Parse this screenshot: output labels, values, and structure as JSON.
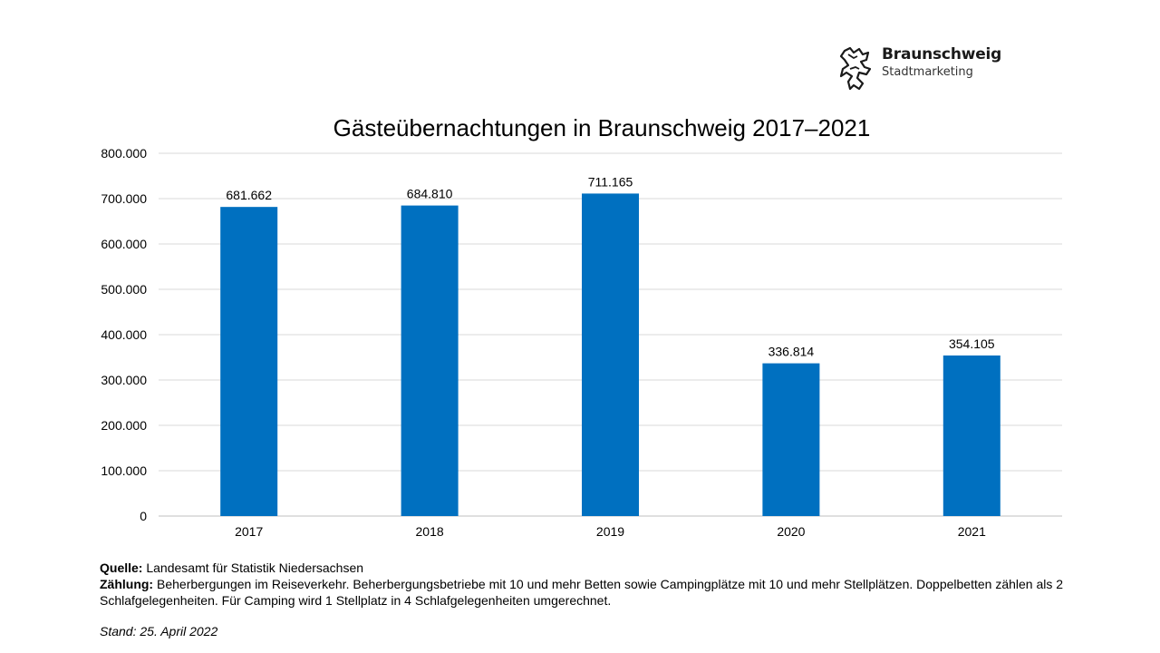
{
  "logo": {
    "name": "Braunschweig",
    "subtitle": "Stadtmarketing",
    "icon": "lion-icon"
  },
  "chart_data": {
    "type": "bar",
    "title": "Gästeübernachtungen in Braunschweig 2017–2021",
    "xlabel": "",
    "ylabel": "",
    "categories": [
      "2017",
      "2018",
      "2019",
      "2020",
      "2021"
    ],
    "values": [
      681662,
      684810,
      711165,
      336814,
      354105
    ],
    "value_labels": [
      "681.662",
      "684.810",
      "711.165",
      "336.814",
      "354.105"
    ],
    "ylim": [
      0,
      800000
    ],
    "yticks": [
      0,
      100000,
      200000,
      300000,
      400000,
      500000,
      600000,
      700000,
      800000
    ],
    "ytick_labels": [
      "0",
      "100.000",
      "200.000",
      "300.000",
      "400.000",
      "500.000",
      "600.000",
      "700.000",
      "800.000"
    ],
    "grid": true,
    "legend": "none",
    "bar_color": "#0070C0",
    "grid_color": "#d9d9d9"
  },
  "notes": {
    "source_label": "Quelle:",
    "source_text": " Landesamt für Statistik Niedersachsen",
    "count_label": "Zählung:",
    "count_text": " Beherbergungen im Reiseverkehr. Beherbergungsbetriebe mit 10 und mehr Betten sowie Campingplätze mit 10 und mehr Stellplätzen. Doppelbetten zählen als 2 Schlafgelegenheiten. Für Camping wird 1 Stellplatz in 4 Schlafgelegenheiten umgerechnet.",
    "stand": "Stand: 25. April 2022"
  }
}
